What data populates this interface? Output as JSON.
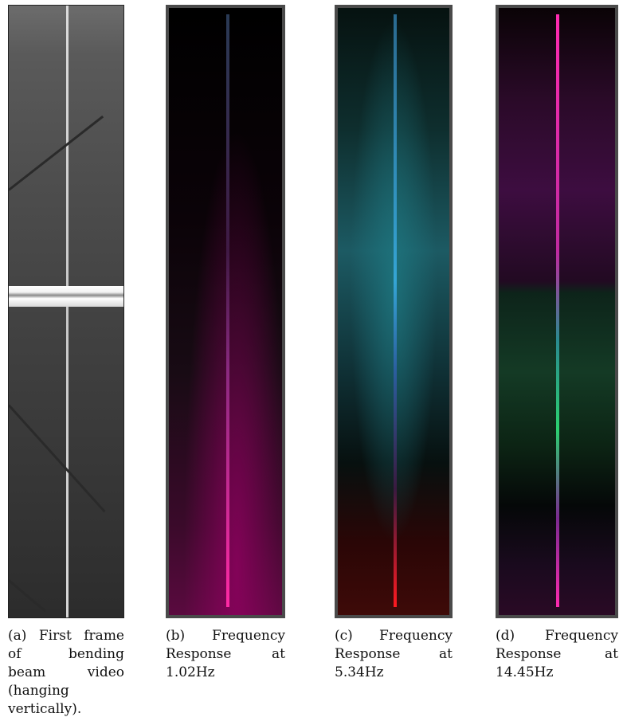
{
  "panels": [
    {
      "caption_lines": [
        "(a) First frame",
        "of bending",
        "beam video",
        "(hanging",
        "vertically)."
      ]
    },
    {
      "caption_lines": [
        "(b) Frequency",
        "Response at",
        "1.02Hz"
      ]
    },
    {
      "caption_lines": [
        "(c) Frequency",
        "Response at",
        "5.34Hz"
      ]
    },
    {
      "caption_lines": [
        "(d) Frequency",
        "Response at",
        "14.45Hz"
      ]
    }
  ]
}
